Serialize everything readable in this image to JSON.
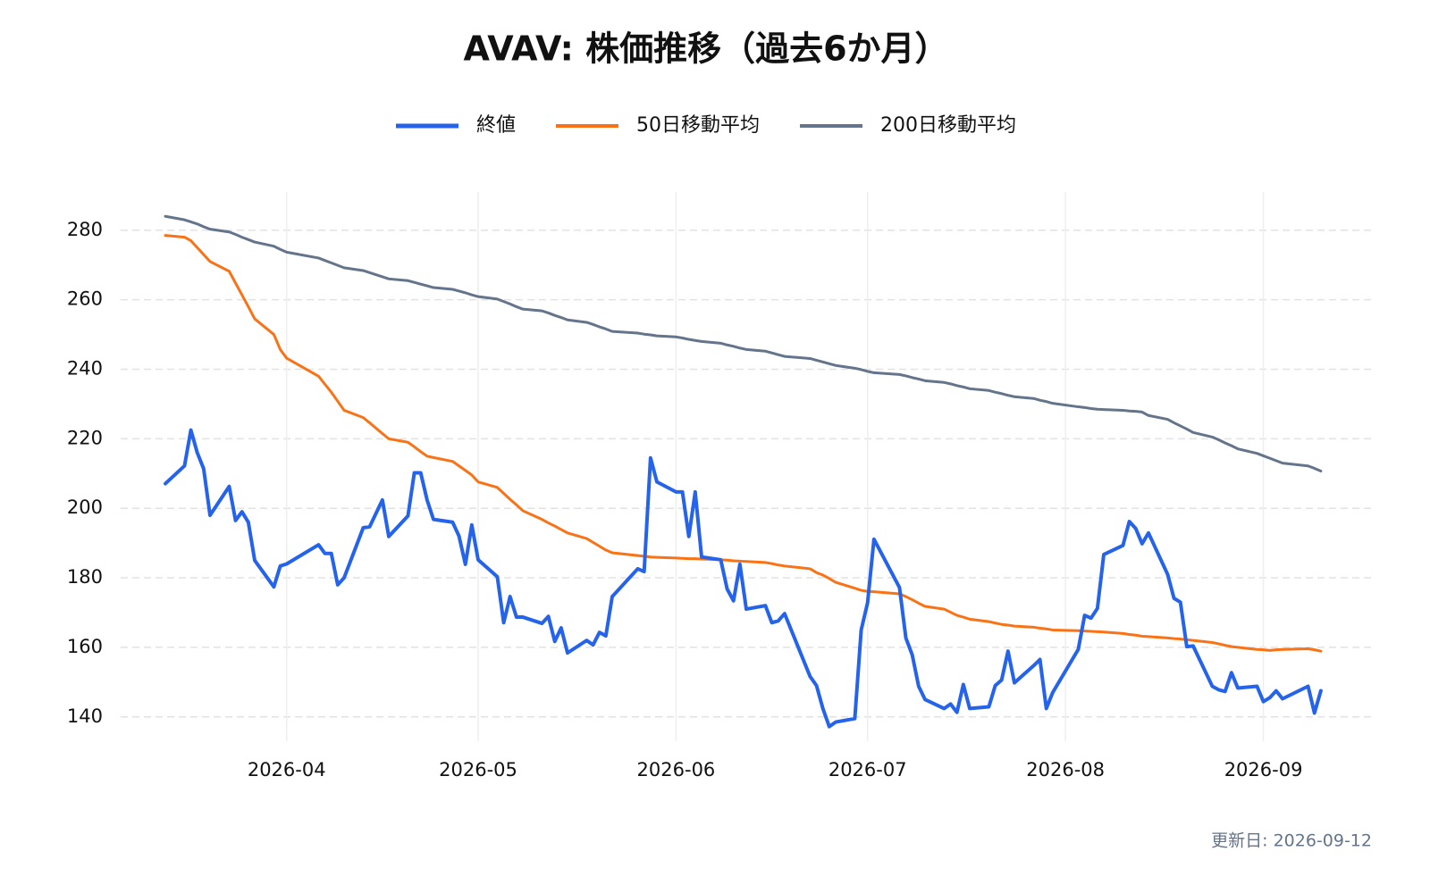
{
  "chart_data": {
    "type": "line",
    "title": "AVAV: 株価推移（過去6か月）",
    "x": [
      "2026-03-13",
      "2026-03-16",
      "2026-03-17",
      "2026-03-18",
      "2026-03-19",
      "2026-03-20",
      "2026-03-23",
      "2026-03-24",
      "2026-03-25",
      "2026-03-26",
      "2026-03-27",
      "2026-03-30",
      "2026-03-31",
      "2026-04-01",
      "2026-04-06",
      "2026-04-07",
      "2026-04-08",
      "2026-04-09",
      "2026-04-10",
      "2026-04-13",
      "2026-04-14",
      "2026-04-16",
      "2026-04-17",
      "2026-04-20",
      "2026-04-21",
      "2026-04-22",
      "2026-04-23",
      "2026-04-24",
      "2026-04-27",
      "2026-04-28",
      "2026-04-29",
      "2026-04-30",
      "2026-05-01",
      "2026-05-04",
      "2026-05-05",
      "2026-05-06",
      "2026-05-07",
      "2026-05-08",
      "2026-05-11",
      "2026-05-12",
      "2026-05-13",
      "2026-05-14",
      "2026-05-15",
      "2026-05-18",
      "2026-05-19",
      "2026-05-20",
      "2026-05-21",
      "2026-05-22",
      "2026-05-26",
      "2026-05-27",
      "2026-05-28",
      "2026-05-29",
      "2026-06-01",
      "2026-06-02",
      "2026-06-03",
      "2026-06-04",
      "2026-06-05",
      "2026-06-08",
      "2026-06-09",
      "2026-06-10",
      "2026-06-11",
      "2026-06-12",
      "2026-06-15",
      "2026-06-16",
      "2026-06-17",
      "2026-06-18",
      "2026-06-22",
      "2026-06-23",
      "2026-06-24",
      "2026-06-25",
      "2026-06-26",
      "2026-06-29",
      "2026-06-30",
      "2026-07-01",
      "2026-07-02",
      "2026-07-06",
      "2026-07-07",
      "2026-07-08",
      "2026-07-09",
      "2026-07-10",
      "2026-07-13",
      "2026-07-14",
      "2026-07-15",
      "2026-07-16",
      "2026-07-17",
      "2026-07-20",
      "2026-07-21",
      "2026-07-22",
      "2026-07-23",
      "2026-07-24",
      "2026-07-27",
      "2026-07-28",
      "2026-07-29",
      "2026-07-30",
      "2026-08-03",
      "2026-08-04",
      "2026-08-05",
      "2026-08-06",
      "2026-08-07",
      "2026-08-10",
      "2026-08-11",
      "2026-08-12",
      "2026-08-13",
      "2026-08-14",
      "2026-08-17",
      "2026-08-18",
      "2026-08-19",
      "2026-08-20",
      "2026-08-21",
      "2026-08-24",
      "2026-08-25",
      "2026-08-26",
      "2026-08-27",
      "2026-08-28",
      "2026-08-31",
      "2026-09-01",
      "2026-09-02",
      "2026-09-03",
      "2026-09-04",
      "2026-09-08",
      "2026-09-09",
      "2026-09-10"
    ],
    "series": [
      {
        "name": "終値",
        "color": "#2563eb",
        "width": 4,
        "values": [
          207.1,
          212.2,
          222.5,
          216,
          211.4,
          198,
          206.3,
          196.5,
          199,
          196,
          185,
          177.4,
          183.4,
          184,
          189.5,
          187,
          187,
          178,
          180,
          194.4,
          194.7,
          202.4,
          191.9,
          197.8,
          210.2,
          210.2,
          202.4,
          196.8,
          196,
          192,
          183.9,
          195.2,
          185.2,
          180.3,
          167.1,
          174.6,
          168.7,
          168.7,
          166.9,
          168.9,
          161.7,
          165.6,
          158.4,
          162,
          160.7,
          164.3,
          163.3,
          174.6,
          182.6,
          181.8,
          214.5,
          207.6,
          204.7,
          204.7,
          191.9,
          204.7,
          186,
          185.2,
          176.8,
          173.4,
          183.9,
          171,
          172,
          167.1,
          167.6,
          169.7,
          151.6,
          149,
          142.4,
          137.2,
          138.5,
          139.5,
          165,
          172.8,
          191.1,
          177.2,
          162.7,
          157.8,
          148.8,
          145,
          142.4,
          143.7,
          141.3,
          149.3,
          142.4,
          142.9,
          149,
          150.6,
          158.9,
          149.8,
          154.7,
          156.5,
          142.4,
          147,
          159.4,
          169.2,
          168.4,
          171.2,
          186.7,
          189.3,
          196.2,
          194.2,
          189.8,
          192.9,
          181,
          174.1,
          173,
          160.2,
          160.4,
          148.8,
          147.8,
          147.3,
          152.7,
          148.3,
          148.8,
          144.4,
          145.5,
          147.5,
          145.2,
          148.8,
          141.1,
          147.5
        ]
      },
      {
        "name": "50日移動平均",
        "color": "#f97316",
        "width": 3,
        "values": [
          278.5,
          278,
          277,
          275,
          273,
          271,
          268.2,
          264.8,
          261.4,
          258,
          254.5,
          250,
          245.7,
          243.2,
          238,
          235.7,
          233.4,
          230.8,
          228.2,
          226.1,
          224.6,
          221.5,
          220,
          219,
          217.7,
          216.3,
          215,
          214.6,
          213.5,
          212.2,
          210.9,
          209.6,
          207.6,
          206,
          204.3,
          202.6,
          201,
          199.3,
          196.8,
          195.8,
          194.9,
          193.9,
          192.9,
          191.3,
          190.2,
          189.1,
          188,
          187.2,
          186.4,
          186.2,
          186,
          185.9,
          185.7,
          185.6,
          185.5,
          185.5,
          185.4,
          185.2,
          185.1,
          184.9,
          184.8,
          184.7,
          184.4,
          184.1,
          183.7,
          183.4,
          182.6,
          181.5,
          180.8,
          179.8,
          178.7,
          177,
          176.4,
          176.1,
          176,
          175.4,
          174.6,
          173.7,
          172.7,
          171.8,
          171,
          170.1,
          169.2,
          168.7,
          168.1,
          167.4,
          167,
          166.6,
          166.4,
          166.1,
          165.8,
          165.5,
          165.3,
          165,
          164.8,
          164.7,
          164.6,
          164.5,
          164.4,
          164,
          163.7,
          163.5,
          163.2,
          163.1,
          162.7,
          162.5,
          162.4,
          162.2,
          162,
          161.4,
          161,
          160.6,
          160.2,
          160,
          159.4,
          159.3,
          159.1,
          159.3,
          159.4,
          159.6,
          159.3,
          158.9
        ]
      },
      {
        "name": "200日移動平均",
        "color": "#64748b",
        "width": 3,
        "values": [
          284,
          283,
          282.4,
          281.8,
          281,
          280.3,
          279.5,
          278.8,
          278,
          277.3,
          276.6,
          275.4,
          274.5,
          273.7,
          272,
          271.3,
          270.6,
          269.9,
          269.2,
          268.4,
          267.8,
          266.6,
          266,
          265.5,
          265,
          264.5,
          264,
          263.5,
          263,
          262.5,
          262,
          261.4,
          260.9,
          260.2,
          259.5,
          258.8,
          258,
          257.3,
          256.8,
          256.2,
          255.5,
          254.9,
          254.2,
          253.5,
          252.9,
          252.2,
          251.6,
          250.9,
          250.4,
          250.1,
          249.9,
          249.6,
          249.3,
          249,
          248.6,
          248.3,
          248,
          247.5,
          247,
          246.6,
          246.1,
          245.7,
          245.2,
          244.7,
          244.2,
          243.7,
          243.1,
          242.6,
          242.1,
          241.6,
          241.1,
          240.3,
          239.9,
          239.4,
          239,
          238.5,
          238.1,
          237.6,
          237.2,
          236.7,
          236.2,
          235.8,
          235.3,
          234.9,
          234.4,
          233.9,
          233.4,
          233,
          232.5,
          232.1,
          231.6,
          231.1,
          230.7,
          230.2,
          229.2,
          229,
          228.7,
          228.5,
          228.4,
          228.2,
          228,
          227.9,
          227.7,
          226.7,
          225.6,
          224.6,
          223.7,
          222.8,
          221.8,
          220.5,
          219.7,
          218.8,
          218,
          217.1,
          215.8,
          215.1,
          214.4,
          213.7,
          213,
          212.2,
          211.5,
          210.7
        ]
      }
    ],
    "xlim": [
      "2026-03-06",
      "2026-09-18"
    ],
    "xticks": [
      {
        "value": "2026-04-01",
        "label": "2026-04"
      },
      {
        "value": "2026-05-01",
        "label": "2026-05"
      },
      {
        "value": "2026-06-01",
        "label": "2026-06"
      },
      {
        "value": "2026-07-01",
        "label": "2026-07"
      },
      {
        "value": "2026-08-01",
        "label": "2026-08"
      },
      {
        "value": "2026-09-01",
        "label": "2026-09"
      }
    ],
    "ylim": [
      133,
      291
    ],
    "yticks": [
      140,
      160,
      180,
      200,
      220,
      240,
      260,
      280
    ],
    "grid": true,
    "legend": "top"
  },
  "footer": "更新日: 2026-09-12"
}
